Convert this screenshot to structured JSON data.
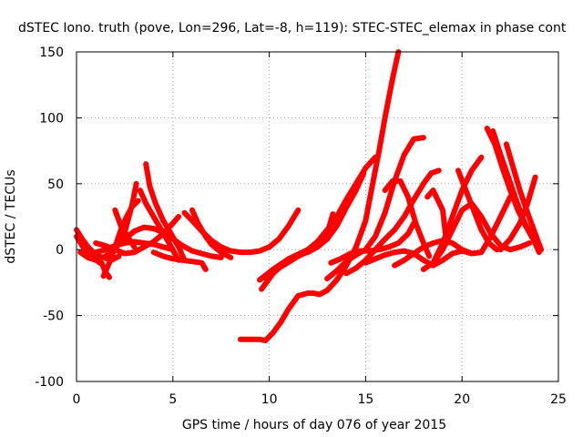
{
  "chart_data": {
    "type": "line",
    "title": "dSTEC Iono. truth (pove, Lon=296, Lat=-8, h=119): STEC-STEC_elemax in phase cont",
    "xlabel": "GPS time / hours of day 076 of year 2015",
    "ylabel": "dSTEC  / TECUs",
    "xlim": [
      0,
      25
    ],
    "ylim": [
      -100,
      150
    ],
    "xticks": [
      "0",
      "5",
      "10",
      "15",
      "20",
      "25"
    ],
    "yticks": [
      "150",
      "100",
      "50",
      "0",
      "-50",
      "-100"
    ],
    "xtick_values": [
      0,
      5,
      10,
      15,
      20,
      25
    ],
    "ytick_values": [
      150,
      100,
      50,
      0,
      -50,
      -100
    ],
    "grid": true,
    "color": "#ff0000",
    "series": [
      {
        "x": [
          0.0,
          0.3,
          0.6,
          1.0,
          1.4,
          1.8,
          2.2
        ],
        "y": [
          15,
          8,
          2,
          -4,
          -6,
          -8,
          -5
        ]
      },
      {
        "x": [
          0.0,
          0.3,
          0.6,
          0.9,
          1.2
        ],
        "y": [
          10,
          3,
          -3,
          -6,
          -10
        ]
      },
      {
        "x": [
          0.2,
          0.6,
          1.0,
          1.3,
          1.5,
          1.7
        ],
        "y": [
          -2,
          -6,
          -8,
          -10,
          -17,
          -21
        ]
      },
      {
        "x": [
          1.4,
          1.7,
          2.0,
          2.3,
          2.6,
          2.9,
          3.2
        ],
        "y": [
          -20,
          -10,
          2,
          15,
          25,
          33,
          37
        ]
      },
      {
        "x": [
          1.5,
          2.0,
          2.5,
          2.9,
          3.1
        ],
        "y": [
          -5,
          0,
          13,
          35,
          50
        ]
      },
      {
        "x": [
          2.0,
          2.3,
          2.7,
          3.0
        ],
        "y": [
          30,
          18,
          9,
          2
        ]
      },
      {
        "x": [
          1.0,
          1.5,
          2.0,
          2.5,
          3.0,
          3.5,
          4.0,
          4.5,
          5.0,
          5.3
        ],
        "y": [
          5,
          3,
          0,
          -3,
          -2,
          2,
          6,
          12,
          20,
          25
        ]
      },
      {
        "x": [
          1.0,
          1.5,
          2.0,
          2.5,
          3.0,
          3.5,
          4.0,
          4.5,
          5.0
        ],
        "y": [
          -2,
          0,
          3,
          5,
          6,
          5,
          4,
          2,
          0
        ]
      },
      {
        "x": [
          2.5,
          3.0,
          3.5,
          4.0,
          4.5,
          5.0,
          5.5,
          6.0,
          6.5,
          7.0,
          7.5
        ],
        "y": [
          8,
          14,
          17,
          16,
          13,
          8,
          3,
          -1,
          -3,
          -5,
          -6
        ]
      },
      {
        "x": [
          3.3,
          3.6,
          4.0,
          4.4,
          4.8,
          5.1,
          5.3
        ],
        "y": [
          45,
          35,
          25,
          15,
          5,
          -3,
          -8
        ]
      },
      {
        "x": [
          3.6,
          3.8,
          4.1,
          4.5,
          4.9,
          5.3,
          5.6
        ],
        "y": [
          65,
          48,
          35,
          22,
          12,
          2,
          -8
        ]
      },
      {
        "x": [
          4.0,
          4.5,
          5.0,
          5.5,
          6.0,
          6.5,
          6.7
        ],
        "y": [
          -2,
          -5,
          -7,
          -8,
          -9,
          -10,
          -15
        ]
      },
      {
        "x": [
          5.6,
          6.0,
          6.5,
          7.0,
          7.5,
          8.0,
          8.5,
          9.0,
          9.5,
          10.0,
          10.5,
          11.0,
          11.5
        ],
        "y": [
          28,
          22,
          14,
          7,
          2,
          -1,
          -2,
          -2,
          -1,
          2,
          8,
          18,
          30
        ]
      },
      {
        "x": [
          6.0,
          6.3,
          6.7,
          7.0,
          7.5,
          8.0
        ],
        "y": [
          30,
          20,
          10,
          4,
          -2,
          -6
        ]
      },
      {
        "x": [
          8.5,
          9.0,
          9.5,
          9.8,
          10.2,
          10.6,
          11.0,
          11.5,
          12.0,
          12.3,
          12.6,
          13.0,
          13.5,
          14.0,
          14.5,
          15.0,
          15.3,
          15.7,
          16.0,
          16.4,
          16.7
        ],
        "y": [
          -68,
          -68,
          -68,
          -69,
          -63,
          -55,
          -45,
          -35,
          -33,
          -33,
          -34,
          -31,
          -23,
          -12,
          2,
          22,
          45,
          75,
          100,
          130,
          150
        ]
      },
      {
        "x": [
          9.6,
          10.2,
          10.8,
          11.5,
          12.0,
          12.5,
          13.0,
          13.3
        ],
        "y": [
          -30,
          -18,
          -10,
          -4,
          -2,
          2,
          12,
          27
        ]
      },
      {
        "x": [
          9.5,
          10.2,
          11.0,
          12.0,
          12.5,
          13.0,
          13.5,
          14.0,
          14.5,
          15.0,
          15.5
        ],
        "y": [
          -23,
          -15,
          -7,
          0,
          6,
          15,
          25,
          38,
          50,
          62,
          70
        ]
      },
      {
        "x": [
          9.8,
          10.5,
          11.5,
          12.5,
          13.0,
          13.5,
          14.0,
          14.5,
          14.9
        ],
        "y": [
          -22,
          -14,
          -5,
          2,
          8,
          18,
          32,
          45,
          58
        ]
      },
      {
        "x": [
          13.2,
          13.7,
          14.2,
          14.7,
          15.2,
          15.7,
          16.2,
          16.7,
          17.2,
          17.5
        ],
        "y": [
          -10,
          -7,
          -3,
          -1,
          -1,
          0,
          2,
          5,
          12,
          20
        ]
      },
      {
        "x": [
          13.0,
          13.5,
          14.0,
          14.5,
          15.0,
          15.5,
          16.0,
          16.5,
          17.0,
          17.5,
          18.0
        ],
        "y": [
          -22,
          -16,
          -9,
          -4,
          0,
          10,
          28,
          52,
          72,
          84,
          85
        ]
      },
      {
        "x": [
          14.0,
          14.5,
          15.0,
          15.5,
          16.0,
          16.5,
          17.0,
          17.5,
          18.0,
          18.4,
          18.8
        ],
        "y": [
          -18,
          -14,
          -8,
          0,
          8,
          15,
          25,
          38,
          50,
          58,
          60
        ]
      },
      {
        "x": [
          15.0,
          15.5,
          16.0,
          16.5,
          17.0,
          17.5,
          18.0,
          18.5,
          19.0,
          19.5,
          20.0,
          20.5
        ],
        "y": [
          -10,
          -7,
          -4,
          -2,
          -1,
          -3,
          -8,
          -12,
          -8,
          -3,
          -1,
          -3
        ]
      },
      {
        "x": [
          16.0,
          16.4,
          16.8,
          17.2,
          17.6,
          18.0,
          18.3
        ],
        "y": [
          45,
          52,
          52,
          40,
          20,
          5,
          -5
        ]
      },
      {
        "x": [
          16.5,
          17.0,
          17.5,
          18.0,
          18.5,
          19.0,
          19.5,
          20.0,
          20.5,
          21.0,
          21.5,
          22.0,
          22.5
        ],
        "y": [
          -12,
          -8,
          -3,
          2,
          5,
          7,
          5,
          0,
          -3,
          -2,
          10,
          25,
          40
        ]
      },
      {
        "x": [
          18.0,
          18.5,
          19.0,
          19.5,
          20.0,
          20.5,
          21.0
        ],
        "y": [
          -15,
          -10,
          5,
          25,
          45,
          60,
          70
        ]
      },
      {
        "x": [
          18.5,
          19.0,
          19.5,
          20.0,
          20.5,
          21.0,
          21.5,
          22.0,
          22.5,
          23.0,
          23.5
        ],
        "y": [
          -10,
          0,
          15,
          30,
          35,
          25,
          12,
          3,
          0,
          2,
          5
        ]
      },
      {
        "x": [
          18.2,
          18.5,
          19.0,
          19.2
        ],
        "y": [
          40,
          45,
          30,
          5
        ]
      },
      {
        "x": [
          19.8,
          20.2,
          20.6,
          21.0,
          21.4,
          21.8
        ],
        "y": [
          60,
          45,
          30,
          15,
          5,
          0
        ]
      },
      {
        "x": [
          21.3,
          21.7,
          22.1,
          22.5,
          22.9,
          23.3,
          23.7,
          24.0
        ],
        "y": [
          92,
          80,
          62,
          45,
          30,
          18,
          8,
          -2
        ]
      },
      {
        "x": [
          21.6,
          22.0,
          22.4,
          22.8,
          23.2,
          23.6,
          24.0
        ],
        "y": [
          90,
          72,
          55,
          38,
          22,
          10,
          2
        ]
      },
      {
        "x": [
          22.3,
          22.6,
          23.0,
          23.4,
          23.8,
          24.1
        ],
        "y": [
          80,
          65,
          45,
          28,
          12,
          0
        ]
      },
      {
        "x": [
          22.0,
          22.5,
          23.0,
          23.4,
          23.8
        ],
        "y": [
          0,
          8,
          20,
          35,
          55
        ]
      }
    ]
  }
}
